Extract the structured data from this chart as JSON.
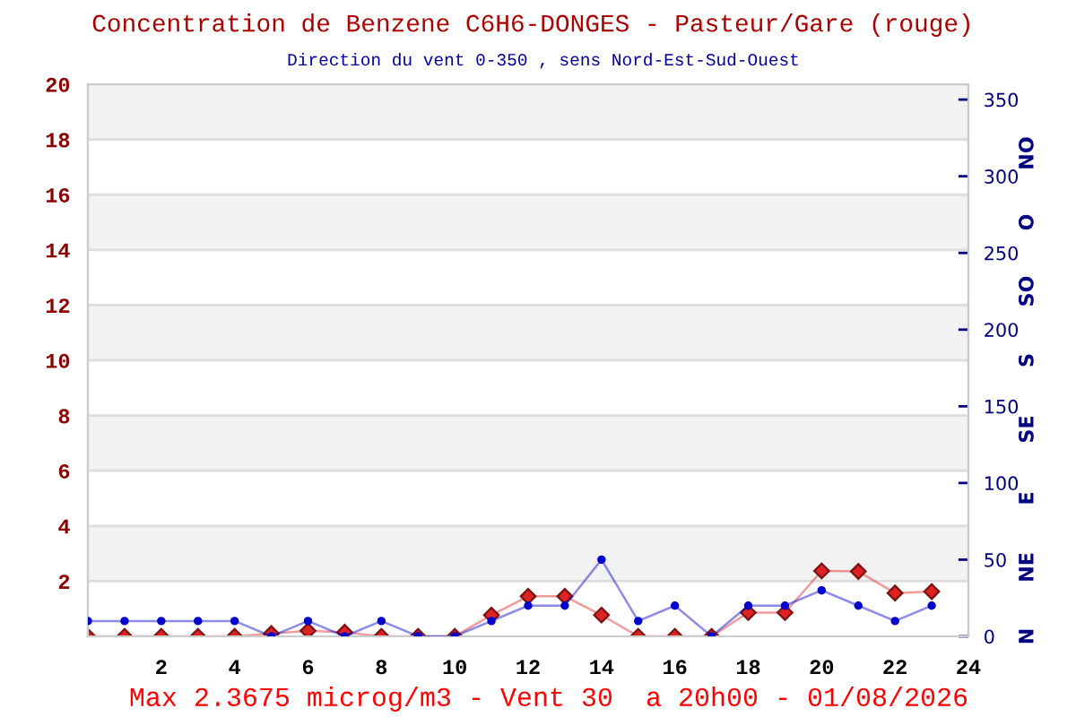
{
  "chart_data": {
    "type": "line",
    "title": "Concentration de Benzene C6H6-DONGES - Pasteur/Gare (rouge)",
    "subtitle": "Direction du vent 0-350 , sens Nord-Est-Sud-Ouest",
    "annotations": [
      "Max 2.3675 microg/m3 - Vent 30  a 20h00 - 01/08/2026"
    ],
    "x": [
      0,
      1,
      2,
      3,
      4,
      5,
      6,
      7,
      8,
      9,
      10,
      11,
      12,
      13,
      14,
      15,
      16,
      17,
      18,
      19,
      20,
      21,
      22,
      23
    ],
    "xlim": [
      0,
      24
    ],
    "xticks": [
      2,
      4,
      6,
      8,
      10,
      12,
      14,
      16,
      18,
      20,
      22,
      24
    ],
    "ylim": [
      0,
      20
    ],
    "yticks": [
      2,
      4,
      6,
      8,
      10,
      12,
      14,
      16,
      18,
      20
    ],
    "y2lim": [
      0,
      360
    ],
    "y2ticks": [
      0,
      50,
      100,
      150,
      200,
      250,
      300,
      350
    ],
    "y2_categories": [
      "NO",
      "O",
      "SO",
      "S",
      "SE",
      "E",
      "NE",
      "N"
    ],
    "grid": "y",
    "bands": [
      {
        "axis": "y",
        "from": 2,
        "to": 4,
        "color": "#f2f2f2"
      },
      {
        "axis": "y",
        "from": 6,
        "to": 8,
        "color": "#f2f2f2"
      },
      {
        "axis": "y",
        "from": 10,
        "to": 12,
        "color": "#f2f2f2"
      },
      {
        "axis": "y",
        "from": 14,
        "to": 16,
        "color": "#f2f2f2"
      },
      {
        "axis": "y",
        "from": 18,
        "to": 20,
        "color": "#f2f2f2"
      }
    ],
    "series": [
      {
        "color": "#dd2222",
        "marker": "diamond",
        "values": [
          0,
          0,
          0,
          0,
          0,
          0.1,
          0.2,
          0.15,
          0,
          0,
          0,
          0.77,
          1.45,
          1.45,
          0.77,
          0,
          0,
          0,
          0.86,
          0.86,
          2.37,
          2.35,
          1.57,
          1.62
        ]
      },
      {
        "color": "#0000cc",
        "marker": "circle",
        "axis": "y2",
        "values": [
          10,
          10,
          10,
          10,
          10,
          0,
          10,
          0,
          10,
          0,
          0,
          10,
          20,
          20,
          50,
          10,
          20,
          0,
          20,
          20,
          30,
          20,
          10,
          20
        ]
      }
    ]
  }
}
